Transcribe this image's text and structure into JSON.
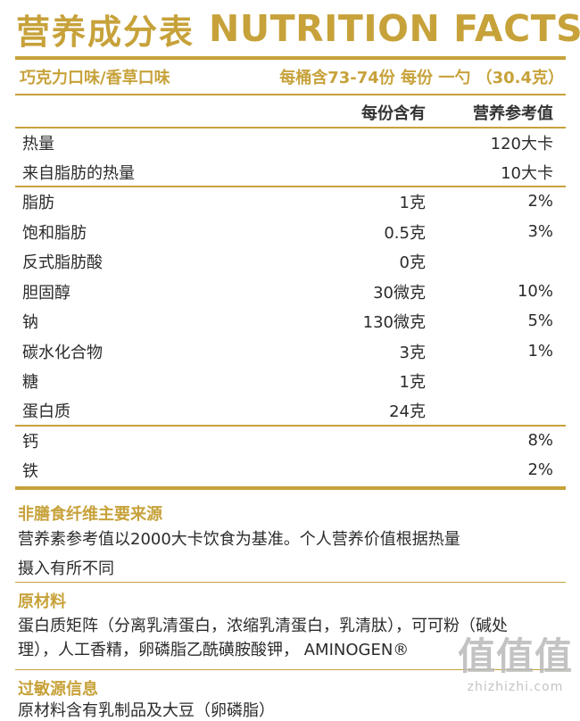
{
  "title": {
    "chinese": "营养成分表",
    "english": "NUTRITION FACTS"
  },
  "subtitle": {
    "flavor": "巧克力口味/香草口味",
    "serving": "每桶含73-74份  每份 一勺 （30.4克）"
  },
  "columns": {
    "amount": "每份含有",
    "daily_value": "营养参考值"
  },
  "groups": [
    [
      {
        "name": "热量",
        "amount": "",
        "dv": "120大卡"
      },
      {
        "name": "来自脂肪的热量",
        "amount": "",
        "dv": "10大卡"
      }
    ],
    [
      {
        "name": "脂肪",
        "amount": "1克",
        "dv": "2%"
      },
      {
        "name": "饱和脂肪",
        "amount": "0.5克",
        "dv": "3%"
      },
      {
        "name": "反式脂肪酸",
        "amount": "0克",
        "dv": ""
      },
      {
        "name": "胆固醇",
        "amount": "30微克",
        "dv": "10%"
      },
      {
        "name": "钠",
        "amount": "130微克",
        "dv": "5%"
      },
      {
        "name": "碳水化合物",
        "amount": "3克",
        "dv": "1%"
      },
      {
        "name": "糖",
        "amount": "1克",
        "dv": ""
      },
      {
        "name": "蛋白质",
        "amount": "24克",
        "dv": ""
      }
    ],
    [
      {
        "name": "钙",
        "amount": "",
        "dv": "8%"
      },
      {
        "name": "铁",
        "amount": "",
        "dv": "2%"
      }
    ]
  ],
  "fiber_note": {
    "title": "非膳食纤维主要来源",
    "line1": "营养素参考值以2000大卡饮食为基准。个人营养价值根据热量",
    "line2": "摄入有所不同"
  },
  "ingredients": {
    "title": "原材料",
    "line1": "蛋白质矩阵（分离乳清蛋白，浓缩乳清蛋白，乳清肽），可可粉（碱处",
    "line2": "理），人工香精，卵磷脂乙酰磺胺酸钾， AMINOGEN®"
  },
  "allergen": {
    "title": "过敏源信息",
    "line1": "原材料含有乳制品及大豆（卵磷脂）"
  },
  "watermark": {
    "chinese": "值值值",
    "url": "zhizhizhi.com"
  },
  "colors": {
    "accent": "#c7a23a",
    "text": "#2b2b2b"
  }
}
